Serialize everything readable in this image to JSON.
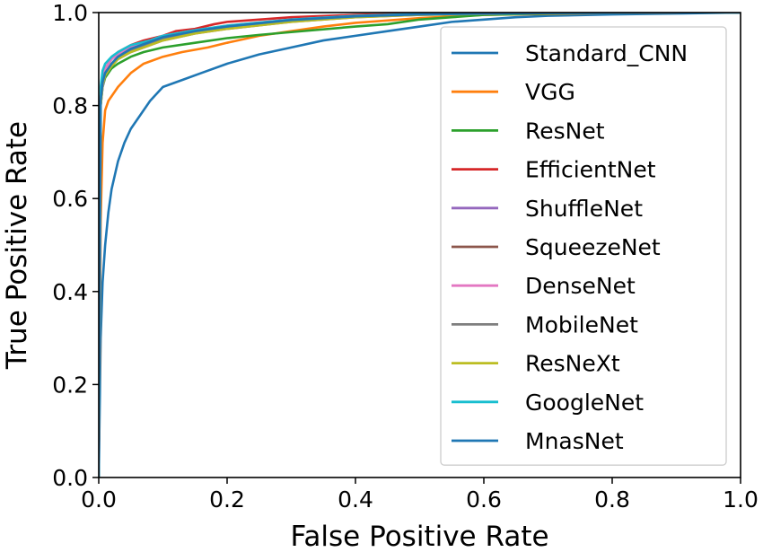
{
  "chart_data": {
    "type": "line",
    "xlabel": "False Positive Rate",
    "ylabel": "True Positive Rate",
    "xlim": [
      0.0,
      1.0
    ],
    "ylim": [
      0.0,
      1.0
    ],
    "xticks": [
      "0.0",
      "0.2",
      "0.4",
      "0.6",
      "0.8",
      "1.0"
    ],
    "yticks": [
      "0.0",
      "0.2",
      "0.4",
      "0.6",
      "0.8",
      "1.0"
    ],
    "grid": false,
    "legend_position": "right",
    "series": [
      {
        "name": "Standard_CNN",
        "color": "#1f77b4",
        "x": [
          0,
          0.003,
          0.006,
          0.01,
          0.015,
          0.02,
          0.03,
          0.04,
          0.05,
          0.06,
          0.08,
          0.1,
          0.13,
          0.16,
          0.2,
          0.25,
          0.3,
          0.35,
          0.4,
          0.45,
          0.5,
          0.55,
          0.6,
          0.65,
          0.7,
          0.8,
          0.9,
          1.0
        ],
        "y": [
          0,
          0.3,
          0.42,
          0.5,
          0.57,
          0.62,
          0.68,
          0.72,
          0.75,
          0.77,
          0.81,
          0.84,
          0.855,
          0.87,
          0.89,
          0.91,
          0.925,
          0.94,
          0.95,
          0.96,
          0.97,
          0.98,
          0.985,
          0.99,
          0.993,
          0.996,
          0.998,
          1.0
        ]
      },
      {
        "name": "VGG",
        "color": "#ff7f0e",
        "x": [
          0,
          0.003,
          0.006,
          0.01,
          0.015,
          0.02,
          0.03,
          0.04,
          0.05,
          0.07,
          0.1,
          0.13,
          0.17,
          0.2,
          0.25,
          0.3,
          0.35,
          0.4,
          0.5,
          0.6,
          0.8,
          1.0
        ],
        "y": [
          0,
          0.55,
          0.72,
          0.79,
          0.81,
          0.82,
          0.84,
          0.855,
          0.87,
          0.89,
          0.905,
          0.915,
          0.925,
          0.935,
          0.95,
          0.96,
          0.97,
          0.978,
          0.988,
          0.995,
          0.999,
          1.0
        ]
      },
      {
        "name": "ResNet",
        "color": "#2ca02c",
        "x": [
          0,
          0.003,
          0.006,
          0.01,
          0.02,
          0.03,
          0.05,
          0.07,
          0.1,
          0.15,
          0.2,
          0.25,
          0.3,
          0.4,
          0.45,
          0.5,
          0.55,
          0.6,
          0.7,
          0.8,
          1.0
        ],
        "y": [
          0,
          0.8,
          0.84,
          0.86,
          0.88,
          0.89,
          0.905,
          0.915,
          0.925,
          0.935,
          0.945,
          0.952,
          0.958,
          0.97,
          0.975,
          0.985,
          0.99,
          0.995,
          0.998,
          0.999,
          1.0
        ]
      },
      {
        "name": "EfficientNet",
        "color": "#d62728",
        "x": [
          0,
          0.003,
          0.006,
          0.01,
          0.02,
          0.03,
          0.05,
          0.07,
          0.1,
          0.12,
          0.15,
          0.18,
          0.2,
          0.25,
          0.3,
          0.4,
          0.5,
          0.7,
          1.0
        ],
        "y": [
          0,
          0.82,
          0.86,
          0.88,
          0.9,
          0.915,
          0.93,
          0.94,
          0.95,
          0.96,
          0.965,
          0.975,
          0.98,
          0.985,
          0.99,
          0.995,
          0.998,
          0.999,
          1.0
        ]
      },
      {
        "name": "ShuffleNet",
        "color": "#9467bd",
        "x": [
          0,
          0.003,
          0.006,
          0.01,
          0.02,
          0.03,
          0.05,
          0.07,
          0.1,
          0.15,
          0.2,
          0.3,
          0.4,
          0.5,
          0.7,
          1.0
        ],
        "y": [
          0,
          0.8,
          0.84,
          0.865,
          0.885,
          0.9,
          0.915,
          0.925,
          0.94,
          0.955,
          0.965,
          0.98,
          0.99,
          0.995,
          0.999,
          1.0
        ]
      },
      {
        "name": "SqueezeNet",
        "color": "#8c564b",
        "x": [
          0,
          0.003,
          0.006,
          0.01,
          0.02,
          0.03,
          0.05,
          0.08,
          0.1,
          0.15,
          0.2,
          0.3,
          0.4,
          0.5,
          0.7,
          1.0
        ],
        "y": [
          0,
          0.81,
          0.85,
          0.87,
          0.89,
          0.905,
          0.92,
          0.935,
          0.945,
          0.96,
          0.97,
          0.985,
          0.992,
          0.996,
          0.999,
          1.0
        ]
      },
      {
        "name": "DenseNet",
        "color": "#e377c2",
        "x": [
          0,
          0.003,
          0.006,
          0.01,
          0.02,
          0.03,
          0.05,
          0.08,
          0.1,
          0.15,
          0.2,
          0.3,
          0.4,
          0.5,
          0.7,
          1.0
        ],
        "y": [
          0,
          0.82,
          0.86,
          0.88,
          0.9,
          0.91,
          0.925,
          0.94,
          0.95,
          0.962,
          0.972,
          0.985,
          0.993,
          0.997,
          0.999,
          1.0
        ]
      },
      {
        "name": "MobileNet",
        "color": "#7f7f7f",
        "x": [
          0,
          0.003,
          0.006,
          0.01,
          0.02,
          0.03,
          0.05,
          0.08,
          0.1,
          0.15,
          0.2,
          0.3,
          0.4,
          0.5,
          0.7,
          1.0
        ],
        "y": [
          0,
          0.81,
          0.85,
          0.87,
          0.89,
          0.905,
          0.92,
          0.935,
          0.945,
          0.958,
          0.968,
          0.982,
          0.991,
          0.996,
          0.999,
          1.0
        ]
      },
      {
        "name": "ResNeXt",
        "color": "#bcbd22",
        "x": [
          0,
          0.003,
          0.006,
          0.01,
          0.02,
          0.03,
          0.05,
          0.08,
          0.1,
          0.15,
          0.2,
          0.3,
          0.4,
          0.5,
          0.7,
          1.0
        ],
        "y": [
          0,
          0.8,
          0.845,
          0.865,
          0.885,
          0.9,
          0.915,
          0.93,
          0.94,
          0.955,
          0.965,
          0.98,
          0.99,
          0.995,
          0.999,
          1.0
        ]
      },
      {
        "name": "GoogleNet",
        "color": "#17becf",
        "x": [
          0,
          0.003,
          0.006,
          0.01,
          0.02,
          0.03,
          0.05,
          0.08,
          0.1,
          0.15,
          0.2,
          0.3,
          0.4,
          0.5,
          0.7,
          1.0
        ],
        "y": [
          0,
          0.84,
          0.875,
          0.89,
          0.905,
          0.915,
          0.93,
          0.94,
          0.95,
          0.962,
          0.972,
          0.985,
          0.993,
          0.997,
          0.999,
          1.0
        ]
      },
      {
        "name": "MnasNet",
        "color": "#1f77b4",
        "x": [
          0,
          0.003,
          0.006,
          0.01,
          0.02,
          0.03,
          0.05,
          0.08,
          0.1,
          0.15,
          0.2,
          0.3,
          0.4,
          0.5,
          0.7,
          1.0
        ],
        "y": [
          0,
          0.81,
          0.85,
          0.87,
          0.89,
          0.905,
          0.922,
          0.937,
          0.947,
          0.96,
          0.97,
          0.984,
          0.992,
          0.996,
          0.999,
          1.0
        ]
      }
    ]
  }
}
